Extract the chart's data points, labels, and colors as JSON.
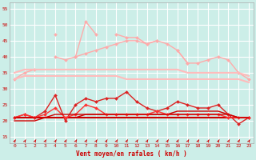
{
  "x": [
    0,
    1,
    2,
    3,
    4,
    5,
    6,
    7,
    8,
    9,
    10,
    11,
    12,
    13,
    14,
    15,
    16,
    17,
    18,
    19,
    20,
    21,
    22,
    23
  ],
  "series": [
    {
      "name": "rafales_light_peak",
      "color": "#ffaaaa",
      "linewidth": 1.0,
      "marker": "D",
      "markersize": 2.0,
      "y": [
        null,
        null,
        null,
        null,
        47,
        null,
        40,
        51,
        47,
        null,
        47,
        46,
        46,
        44,
        45,
        null,
        42,
        38,
        null,
        null,
        null,
        null,
        null,
        null
      ]
    },
    {
      "name": "rafales_pink_wide",
      "color": "#ffaaaa",
      "linewidth": 1.0,
      "marker": "D",
      "markersize": 2.0,
      "y": [
        33,
        35,
        36,
        null,
        40,
        39,
        40,
        41,
        42,
        43,
        44,
        45,
        45,
        44,
        45,
        44,
        42,
        38,
        38,
        39,
        40,
        39,
        35,
        33
      ]
    },
    {
      "name": "moy_band_top",
      "color": "#ffbbbb",
      "linewidth": 1.5,
      "marker": null,
      "markersize": 0,
      "y": [
        35,
        36,
        36,
        36,
        36,
        36,
        36,
        36,
        36,
        36,
        36,
        36,
        36,
        36,
        36,
        36,
        36,
        35,
        35,
        35,
        35,
        35,
        35,
        34
      ]
    },
    {
      "name": "moy_band_bot",
      "color": "#ffbbbb",
      "linewidth": 1.5,
      "marker": null,
      "markersize": 0,
      "y": [
        33,
        34,
        34,
        34,
        34,
        34,
        34,
        34,
        34,
        34,
        34,
        33,
        33,
        33,
        33,
        33,
        33,
        33,
        33,
        33,
        33,
        33,
        33,
        32
      ]
    },
    {
      "name": "vent_moyen_red_flat",
      "color": "#cc0000",
      "linewidth": 1.5,
      "marker": null,
      "markersize": 0,
      "y": [
        21,
        21,
        21,
        21,
        21,
        21,
        21,
        21,
        21,
        21,
        21,
        21,
        21,
        21,
        21,
        21,
        21,
        21,
        21,
        21,
        21,
        21,
        21,
        21
      ]
    },
    {
      "name": "vent_moyen_slight_slope",
      "color": "#cc0000",
      "linewidth": 1.0,
      "marker": null,
      "markersize": 0,
      "y": [
        20,
        20,
        20,
        21,
        21,
        21,
        21,
        22,
        22,
        22,
        22,
        22,
        22,
        22,
        22,
        22,
        23,
        23,
        23,
        23,
        23,
        22,
        21,
        21
      ]
    },
    {
      "name": "rafales_red_spiky",
      "color": "#dd2222",
      "linewidth": 1.0,
      "marker": "D",
      "markersize": 2.0,
      "y": [
        21,
        22,
        21,
        23,
        28,
        20,
        25,
        27,
        26,
        27,
        27,
        29,
        26,
        24,
        23,
        24,
        26,
        25,
        24,
        24,
        25,
        22,
        19,
        21
      ]
    },
    {
      "name": "vent_moyen_spiky",
      "color": "#ff3333",
      "linewidth": 1.0,
      "marker": "D",
      "markersize": 2.0,
      "y": [
        21,
        22,
        21,
        22,
        24,
        21,
        22,
        25,
        24,
        22,
        22,
        22,
        22,
        22,
        23,
        22,
        22,
        22,
        22,
        22,
        22,
        21,
        21,
        21
      ]
    },
    {
      "name": "vent_lower_slope",
      "color": "#cc0000",
      "linewidth": 1.0,
      "marker": null,
      "markersize": 0,
      "y": [
        21,
        21,
        21,
        21,
        22,
        22,
        22,
        22,
        22,
        22,
        22,
        22,
        22,
        22,
        22,
        22,
        22,
        22,
        22,
        22,
        22,
        22,
        21,
        21
      ]
    }
  ],
  "yticks": [
    15,
    20,
    25,
    30,
    35,
    40,
    45,
    50,
    55
  ],
  "xticks": [
    0,
    1,
    2,
    3,
    4,
    5,
    6,
    7,
    8,
    9,
    10,
    11,
    12,
    13,
    14,
    15,
    16,
    17,
    18,
    19,
    20,
    21,
    22,
    23
  ],
  "xlabel": "Vent moyen/en rafales ( km/h )",
  "ylim": [
    13,
    57
  ],
  "xlim": [
    -0.5,
    23.5
  ],
  "bg_color": "#cceee8",
  "grid_color": "#ffffff",
  "spine_color": "#aaaaaa",
  "tick_color": "#cc0000",
  "arrow_color": "#cc0000",
  "xlabel_color": "#cc0000"
}
